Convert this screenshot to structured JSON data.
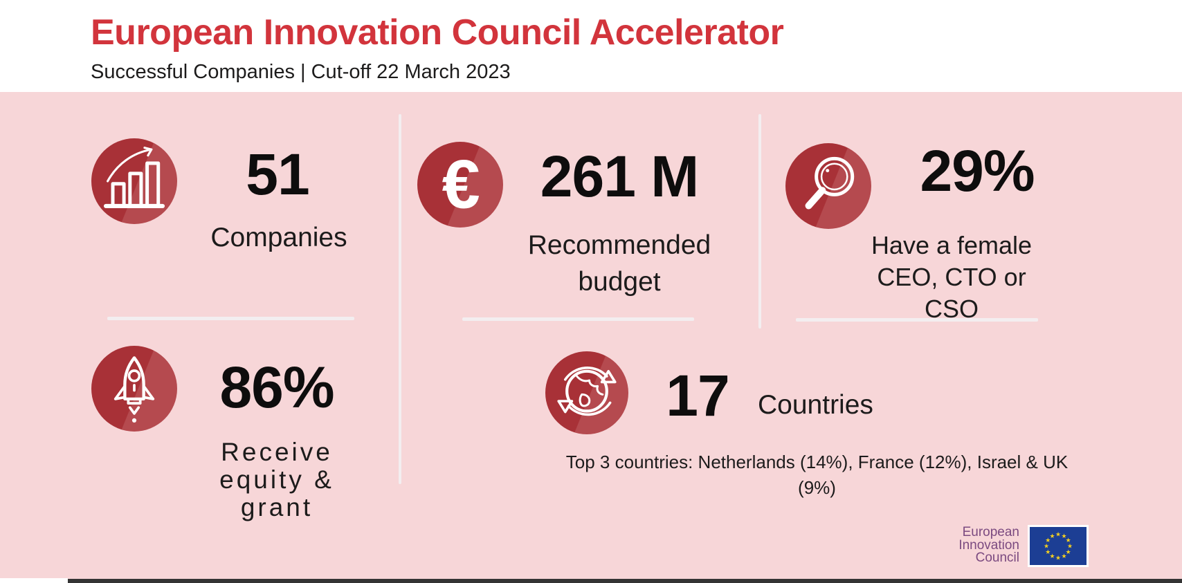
{
  "header": {
    "title": "European Innovation Council Accelerator",
    "subtitle": "Successful Companies | Cut-off 22 March 2023"
  },
  "stats": [
    {
      "id": "companies",
      "icon": "bar-chart-growth-icon",
      "value": "51",
      "label": "Companies"
    },
    {
      "id": "recommended-budget",
      "icon": "euro-icon",
      "value": "261 M",
      "label": "Recommended\nbudget"
    },
    {
      "id": "female-leadership",
      "icon": "magnifier-icon",
      "value": "29%",
      "label": "Have a female\nCEO, CTO or CSO"
    },
    {
      "id": "equity-grant",
      "icon": "rocket-icon",
      "value": "86%",
      "label": "Receive\nequity &\ngrant"
    },
    {
      "id": "countries",
      "icon": "globe-arrows-icon",
      "value": "17",
      "label": "Countries",
      "note": "Top 3 countries: Netherlands (14%), France (12%), Israel & UK\n(9%)"
    }
  ],
  "icons": {
    "euro_glyph": "€",
    "star_glyph": "★"
  },
  "footer": {
    "logo_text": "European\nInnovation\nCouncil",
    "flag": {
      "stars": 12
    }
  },
  "colors": {
    "title_red": "#d2343c",
    "circle_red": "#a83137",
    "circle_red_highlight": "#b54a4f",
    "background_pink": "#f7d6d8",
    "text_black": "#1c1b1b",
    "divider": "#f3eef0",
    "logo_purple": "#7b4a80",
    "flag_blue": "#1c3e94",
    "flag_star_yellow": "#f5d020"
  }
}
